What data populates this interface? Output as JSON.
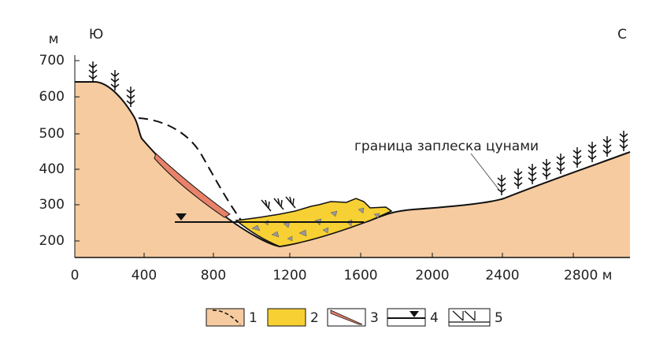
{
  "axes": {
    "y_unit": "м",
    "y_ticks": [
      "700",
      "600",
      "500",
      "400",
      "300",
      "200"
    ],
    "x_ticks": [
      "0",
      "400",
      "800",
      "1200",
      "1600",
      "2000",
      "2400",
      "2800 м"
    ]
  },
  "labels": {
    "south": "Ю",
    "north": "С",
    "tsunami_boundary": "граница заплеска цунами"
  },
  "legend": [
    "1",
    "2",
    "3",
    "4",
    "5"
  ]
}
